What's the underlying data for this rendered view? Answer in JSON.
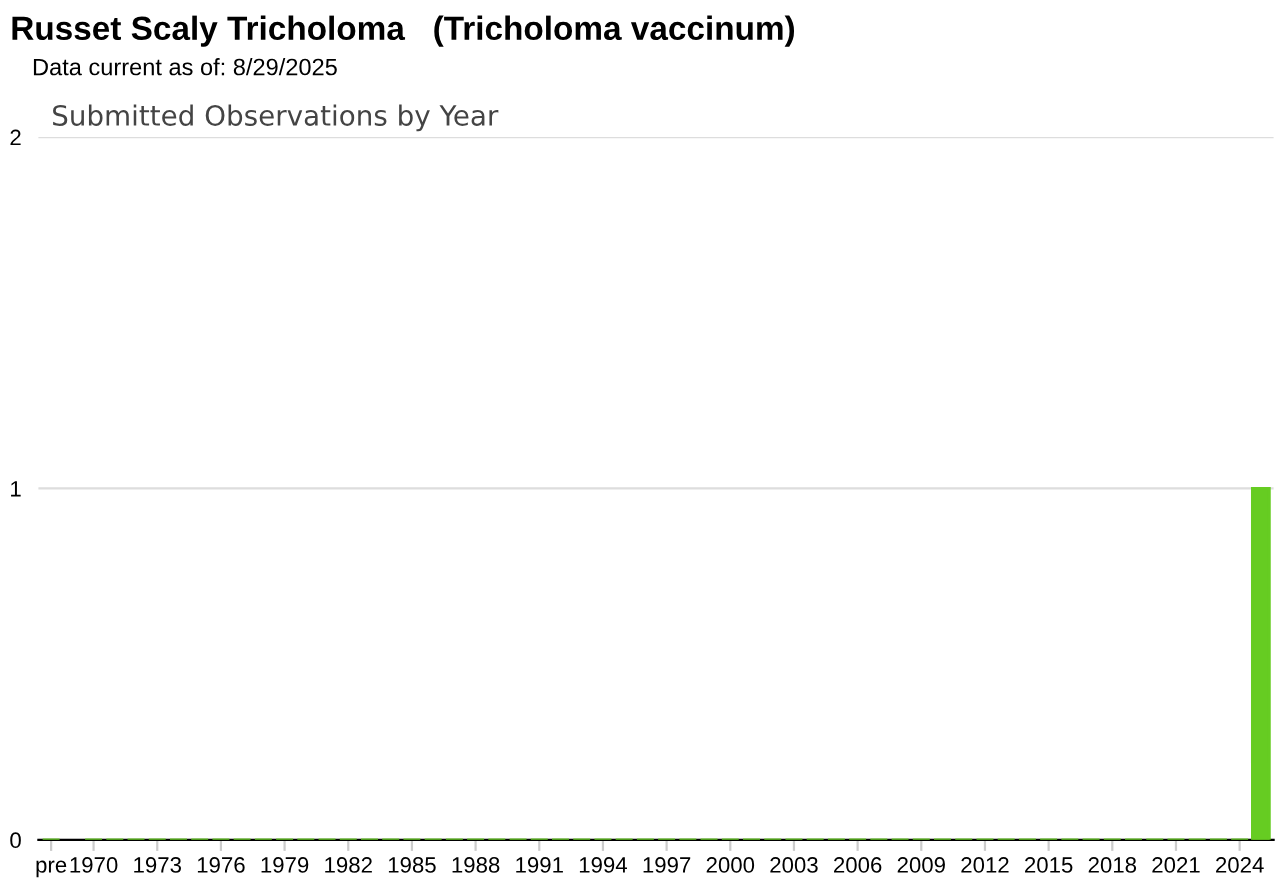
{
  "chart_data": {
    "type": "bar",
    "title": "Russet Scaly Tricholoma   (Tricholoma vaccinum)",
    "subtitle": "Data current as of: 8/29/2025",
    "annotations": [
      "Submitted Observations by Year"
    ],
    "categories": [
      "pre",
      "1970",
      null,
      null,
      "1973",
      null,
      null,
      "1976",
      null,
      null,
      "1979",
      null,
      null,
      "1982",
      null,
      null,
      "1985",
      null,
      null,
      "1988",
      null,
      null,
      "1991",
      null,
      null,
      "1994",
      null,
      null,
      "1997",
      null,
      null,
      "2000",
      null,
      null,
      "2003",
      null,
      null,
      "2006",
      null,
      null,
      "2009",
      null,
      null,
      "2012",
      null,
      null,
      "2015",
      null,
      null,
      "2018",
      null,
      null,
      "2021",
      null,
      null,
      "2024",
      null
    ],
    "values": [
      0,
      0,
      0,
      0,
      0,
      0,
      0,
      0,
      0,
      0,
      0,
      0,
      0,
      0,
      0,
      0,
      0,
      0,
      0,
      0,
      0,
      0,
      0,
      0,
      0,
      0,
      0,
      0,
      0,
      0,
      0,
      0,
      0,
      0,
      0,
      0,
      0,
      0,
      0,
      0,
      0,
      0,
      0,
      0,
      0,
      0,
      0,
      0,
      0,
      0,
      0,
      0,
      0,
      0,
      0,
      0,
      1
    ],
    "color": "#66cc22",
    "ylim": [
      0,
      2
    ],
    "yticks": [
      0,
      1,
      2
    ],
    "grid": "y"
  }
}
